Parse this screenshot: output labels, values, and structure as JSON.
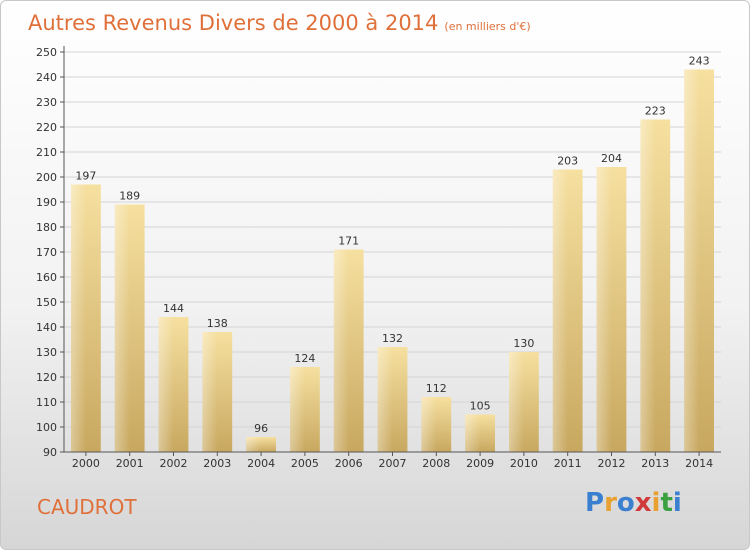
{
  "header": {
    "title": "Autres Revenus Divers de 2000 à 2014",
    "subtitle": "(en milliers d'€)"
  },
  "footer": {
    "commune": "CAUDROT",
    "logo_letters": [
      "P",
      "r",
      "o",
      "x",
      "i",
      "t",
      "i"
    ],
    "logo_colors": [
      "#3a7fd0",
      "#e8a030",
      "#3a7fd0",
      "#d03a3a",
      "#e8a030",
      "#3aa040",
      "#3a7fd0"
    ]
  },
  "chart_data": {
    "type": "bar",
    "categories": [
      "2000",
      "2001",
      "2002",
      "2003",
      "2004",
      "2005",
      "2006",
      "2007",
      "2008",
      "2009",
      "2010",
      "2011",
      "2012",
      "2013",
      "2014"
    ],
    "values": [
      197,
      189,
      144,
      138,
      96,
      124,
      171,
      132,
      112,
      105,
      130,
      203,
      204,
      223,
      243
    ],
    "title": "Autres Revenus Divers de 2000 à 2014",
    "subtitle": "(en milliers d'€)",
    "xlabel": "",
    "ylabel": "",
    "ylim": [
      90,
      250
    ],
    "yticks": [
      90,
      100,
      110,
      120,
      130,
      140,
      150,
      160,
      170,
      180,
      190,
      200,
      210,
      220,
      230,
      240,
      250
    ],
    "grid": true,
    "bar_color": "#f0d890"
  }
}
